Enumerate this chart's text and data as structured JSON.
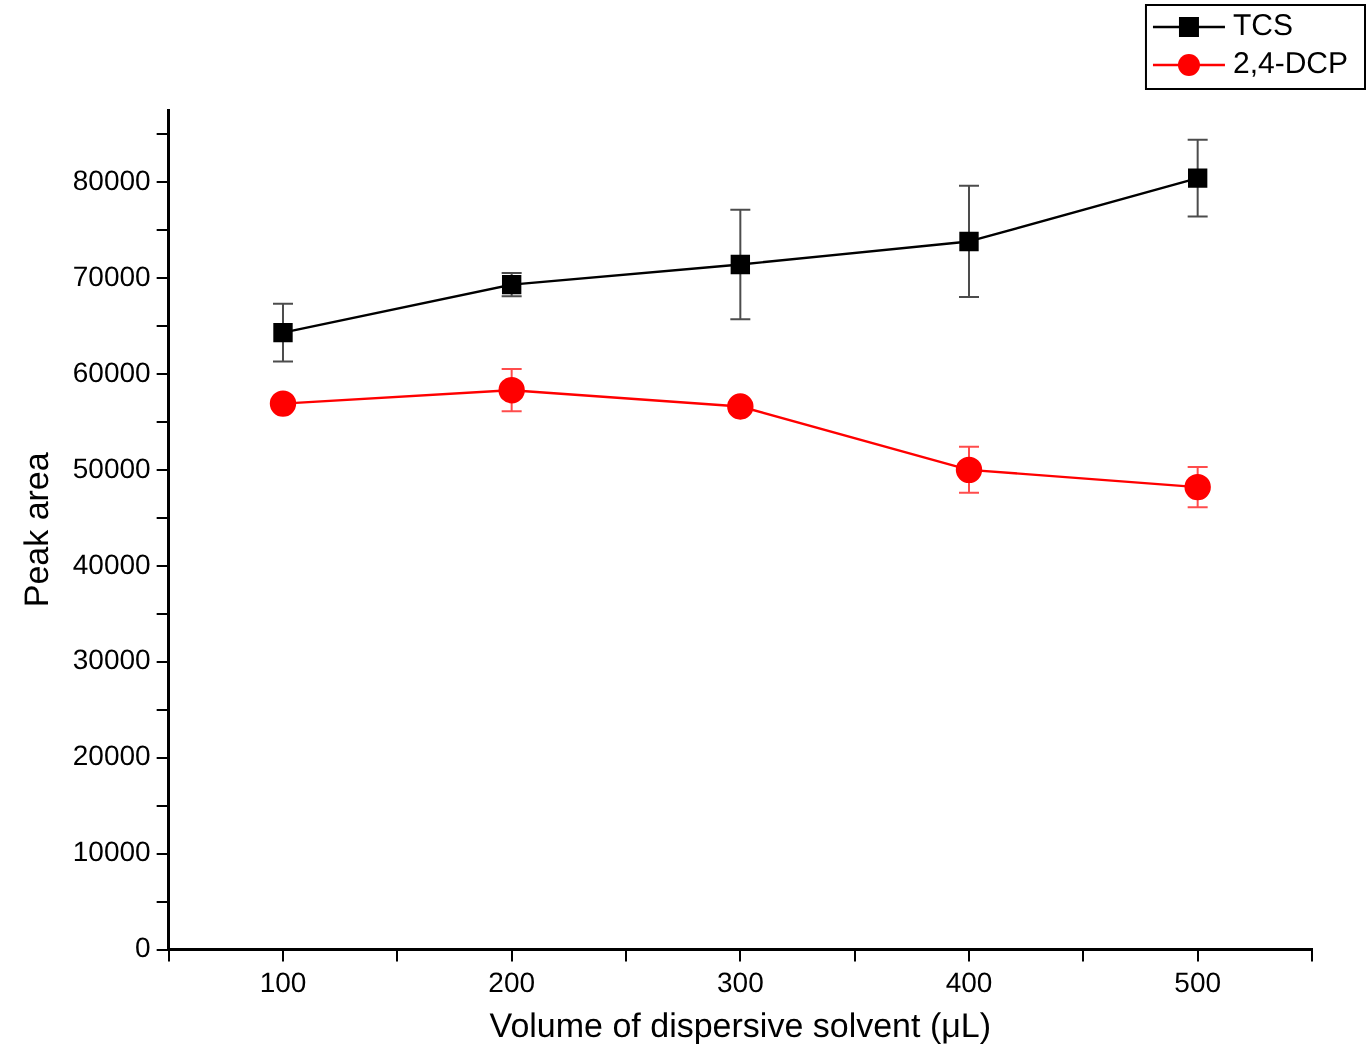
{
  "chart_data": {
    "type": "line",
    "xlabel": "Volume of dispersive solvent (μL)",
    "ylabel": "Peak area",
    "x": [
      100,
      200,
      300,
      400,
      500
    ],
    "series": [
      {
        "name": "TCS",
        "color": "#000000",
        "marker": "square",
        "values": [
          64300,
          69300,
          71400,
          73800,
          80400
        ],
        "errors": [
          3000,
          1200,
          5700,
          5800,
          4000
        ]
      },
      {
        "name": "2,4-DCP",
        "color": "#ff0000",
        "marker": "circle",
        "values": [
          56900,
          58300,
          56600,
          50000,
          48200
        ],
        "errors": [
          null,
          2200,
          null,
          2400,
          2100
        ]
      }
    ],
    "xlim": [
      50,
      550
    ],
    "xticks": [
      {
        "value": 50,
        "label": null
      },
      100,
      {
        "value": 150,
        "label": null
      },
      200,
      {
        "value": 250,
        "label": null
      },
      300,
      {
        "value": 350,
        "label": null
      },
      400,
      {
        "value": 450,
        "label": null
      },
      500,
      {
        "value": 550,
        "label": null
      }
    ],
    "ylim": [
      0,
      87500
    ],
    "yticks": [
      0,
      {
        "value": 5000,
        "label": null
      },
      10000,
      {
        "value": 15000,
        "label": null
      },
      20000,
      {
        "value": 25000,
        "label": null
      },
      30000,
      {
        "value": 35000,
        "label": null
      },
      40000,
      {
        "value": 45000,
        "label": null
      },
      50000,
      {
        "value": 55000,
        "label": null
      },
      60000,
      {
        "value": 65000,
        "label": null
      },
      70000,
      {
        "value": 75000,
        "label": null
      },
      80000,
      {
        "value": 85000,
        "label": null
      }
    ],
    "grid": false,
    "legend": "top right",
    "line_style": "solid"
  }
}
